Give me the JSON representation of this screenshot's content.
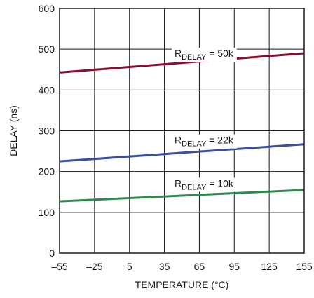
{
  "chart_data": {
    "type": "line",
    "xlabel": "TEMPERATURE (°C)",
    "ylabel": "DELAY (ns)",
    "xlim": [
      -55,
      155
    ],
    "ylim": [
      0,
      600
    ],
    "x_ticks": [
      "–55",
      "–25",
      "5",
      "35",
      "65",
      "95",
      "125",
      "155"
    ],
    "y_ticks": [
      "0",
      "100",
      "200",
      "300",
      "400",
      "500",
      "600"
    ],
    "grid": true,
    "x": [
      -55,
      155
    ],
    "series": [
      {
        "name_prefix": "R",
        "name_sub": "DELAY",
        "name_suffix": " = 50k",
        "values": [
          443,
          490
        ],
        "color": "#8b0d2e"
      },
      {
        "name_prefix": "R",
        "name_sub": "DELAY",
        "name_suffix": " = 22k",
        "values": [
          225,
          267
        ],
        "color": "#3a4f9e"
      },
      {
        "name_prefix": "R",
        "name_sub": "DELAY",
        "name_suffix": " = 10k",
        "values": [
          127,
          155
        ],
        "color": "#2e8a4e"
      }
    ]
  }
}
